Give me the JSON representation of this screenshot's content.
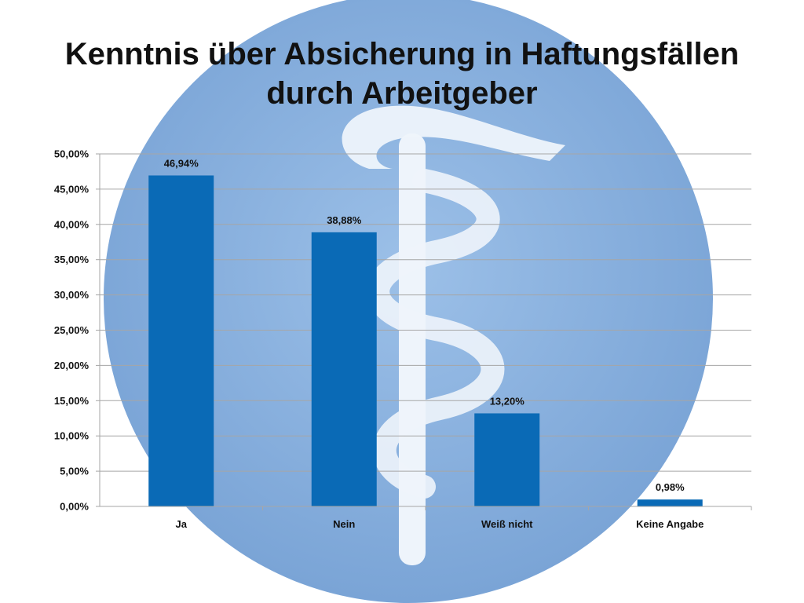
{
  "title_lines": [
    "Kenntnis über Absicherung in Haftungsfällen",
    "durch Arbeitgeber"
  ],
  "colors": {
    "bar": "#0a6ab6",
    "background_circle": "#86aedd",
    "emblem": "#eef4fb",
    "gridline": "#a6a6a6"
  },
  "chart_data": {
    "type": "bar",
    "title": "Kenntnis über Absicherung in Haftungsfällen durch Arbeitgeber",
    "categories": [
      "Ja",
      "Nein",
      "Weiß nicht",
      "Keine Angabe"
    ],
    "values": [
      46.94,
      38.88,
      13.2,
      0.98
    ],
    "value_labels": [
      "46,94%",
      "38,88%",
      "13,20%",
      "0,98%"
    ],
    "ylim": [
      0,
      50
    ],
    "ytick_step": 5,
    "ytick_labels": [
      "0,00%",
      "5,00%",
      "10,00%",
      "15,00%",
      "20,00%",
      "25,00%",
      "30,00%",
      "35,00%",
      "40,00%",
      "45,00%",
      "50,00%"
    ],
    "xlabel": "",
    "ylabel": "",
    "grid": true,
    "legend": "none"
  }
}
